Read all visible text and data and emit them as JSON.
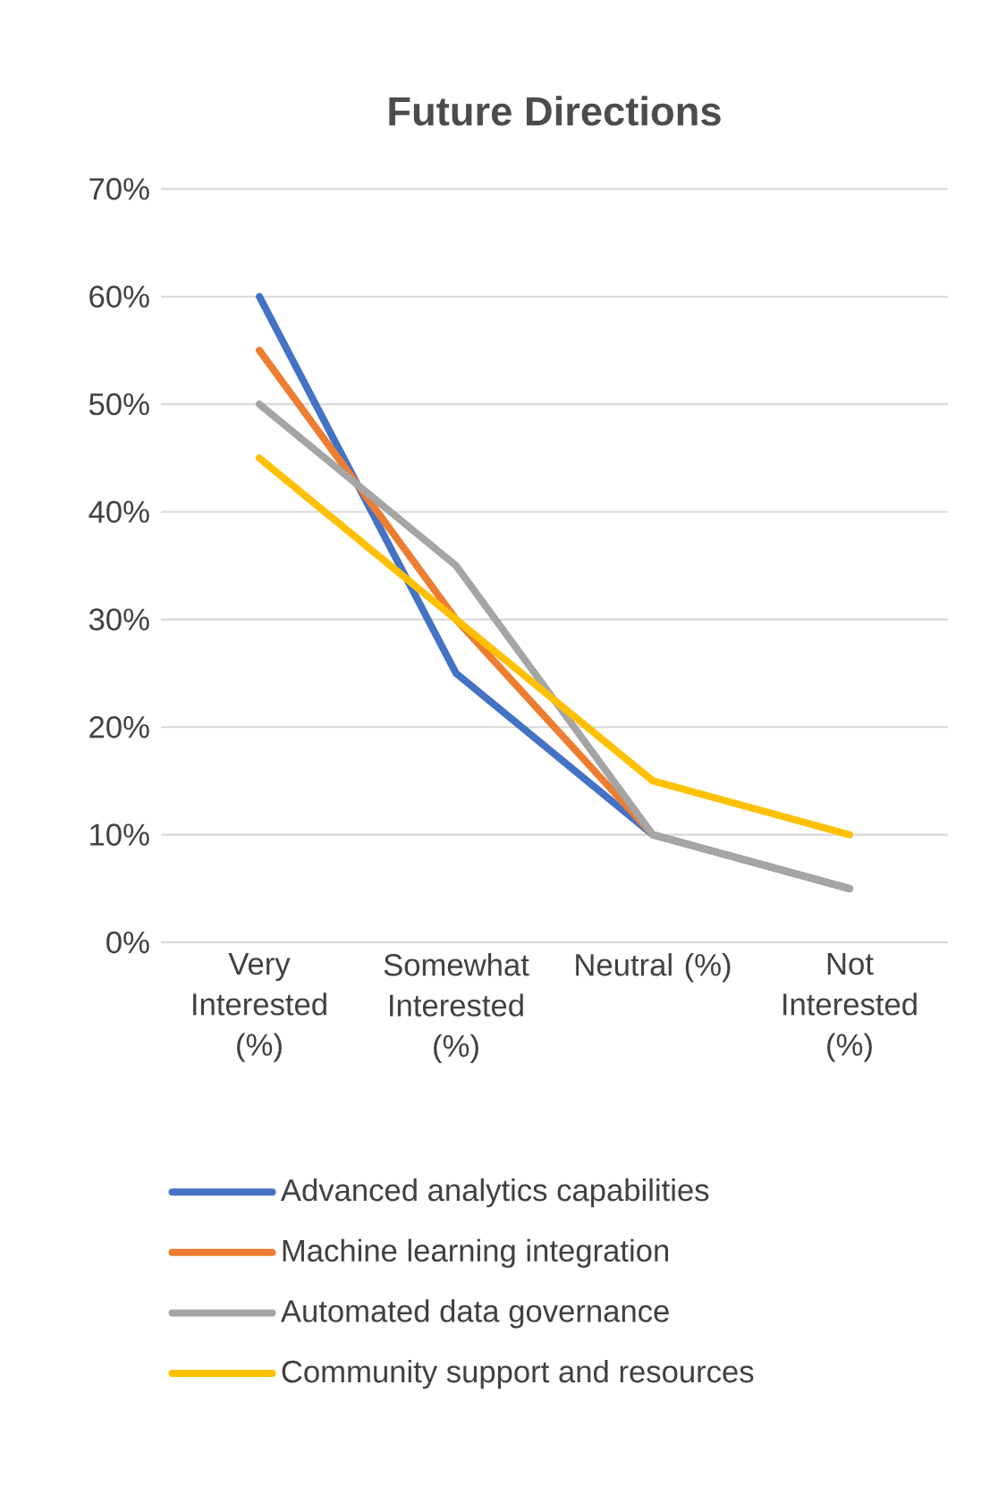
{
  "chart_data": {
    "type": "line",
    "title": "Future Directions",
    "categories": [
      "Very Interested (%)",
      "Somewhat Interested (%)",
      "Neutral (%)",
      "Not Interested (%)"
    ],
    "series": [
      {
        "name": "Advanced analytics capabilities",
        "color": "#4472c4",
        "values": [
          60,
          25,
          10,
          5
        ]
      },
      {
        "name": "Machine learning integration",
        "color": "#ed7d31",
        "values": [
          55,
          30,
          10,
          5
        ]
      },
      {
        "name": "Automated data governance",
        "color": "#a5a5a5",
        "values": [
          50,
          35,
          10,
          5
        ]
      },
      {
        "name": "Community support and resources",
        "color": "#ffc000",
        "values": [
          45,
          30,
          15,
          10
        ]
      }
    ],
    "ylim": [
      0,
      70
    ],
    "yticks": [
      {
        "value": 0,
        "label": "0%"
      },
      {
        "value": 10,
        "label": "10%"
      },
      {
        "value": 20,
        "label": "20%"
      },
      {
        "value": 30,
        "label": "30%"
      },
      {
        "value": 40,
        "label": "40%"
      },
      {
        "value": 50,
        "label": "50%"
      },
      {
        "value": 60,
        "label": "60%"
      },
      {
        "value": 70,
        "label": "70%"
      }
    ],
    "grid": "y",
    "legend": "bottom",
    "marker": "none",
    "line_style": "solid"
  }
}
